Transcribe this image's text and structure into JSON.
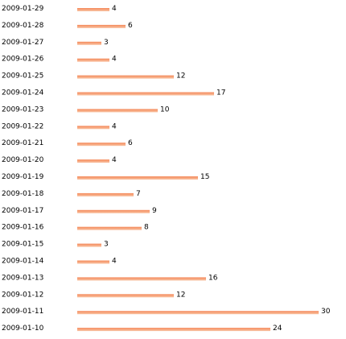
{
  "chart_data": {
    "type": "bar",
    "orientation": "horizontal",
    "categories": [
      "2009-01-29",
      "2009-01-28",
      "2009-01-27",
      "2009-01-26",
      "2009-01-25",
      "2009-01-24",
      "2009-01-23",
      "2009-01-22",
      "2009-01-21",
      "2009-01-20",
      "2009-01-19",
      "2009-01-18",
      "2009-01-17",
      "2009-01-16",
      "2009-01-15",
      "2009-01-14",
      "2009-01-13",
      "2009-01-12",
      "2009-01-11",
      "2009-01-10"
    ],
    "values": [
      4,
      6,
      3,
      4,
      12,
      17,
      10,
      4,
      6,
      4,
      15,
      7,
      9,
      8,
      3,
      4,
      16,
      12,
      30,
      24
    ],
    "title": "",
    "xlabel": "",
    "ylabel": "",
    "xlim": [
      0,
      30
    ],
    "grid": false,
    "legend": "none",
    "colors": {
      "bar_main": "#f4895a",
      "bar_light": "#f9c4a4"
    }
  }
}
